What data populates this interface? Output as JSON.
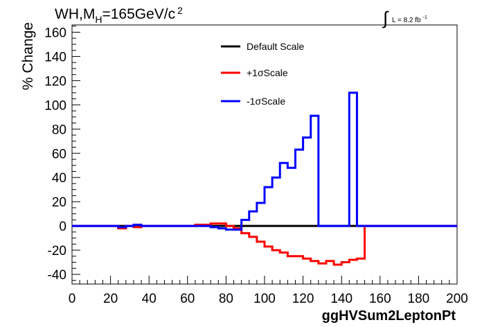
{
  "chart_data": {
    "type": "line",
    "title": "WH,M",
    "title_sub": "H",
    "title_rest": "=165GeV/c",
    "title_sup": "2",
    "lumi_label": "L = 8.2 fb",
    "lumi_sup": "-1",
    "xlabel": "ggHVSum2LeptonPt",
    "ylabel": "% Change",
    "xlim": [
      0,
      200
    ],
    "ylim": [
      -48,
      166
    ],
    "x_ticks": [
      0,
      20,
      40,
      60,
      80,
      100,
      120,
      140,
      160,
      180,
      200
    ],
    "x_tick_labels": [
      "0",
      "20",
      "40",
      "60",
      "80",
      "100",
      "120",
      "140",
      "160",
      "180",
      "200"
    ],
    "y_ticks": [
      -40,
      -20,
      0,
      20,
      40,
      60,
      80,
      100,
      120,
      140,
      160
    ],
    "y_tick_labels": [
      "-40",
      "-20",
      "0",
      "20",
      "40",
      "60",
      "80",
      "100",
      "120",
      "140",
      "160"
    ],
    "bin_edges": [
      0,
      4,
      8,
      12,
      16,
      20,
      24,
      28,
      32,
      36,
      40,
      44,
      48,
      52,
      56,
      60,
      64,
      68,
      72,
      76,
      80,
      84,
      88,
      92,
      96,
      100,
      104,
      108,
      112,
      116,
      120,
      124,
      128,
      132,
      136,
      140,
      144,
      148,
      152,
      156,
      160,
      164,
      168,
      172,
      176,
      180,
      184,
      188,
      192,
      196,
      200
    ],
    "legend_position": "top-center",
    "grid": false,
    "series": [
      {
        "name": "Default Scale",
        "color": "#000000",
        "values": [
          0,
          0,
          0,
          0,
          0,
          0,
          0,
          0,
          0,
          0,
          0,
          0,
          0,
          0,
          0,
          0,
          0,
          0,
          0,
          0,
          0,
          0,
          0,
          0,
          0,
          0,
          0,
          0,
          0,
          0,
          0,
          0,
          0,
          0,
          0,
          0,
          0,
          0,
          0,
          0,
          0,
          0,
          0,
          0,
          0,
          0,
          0,
          0,
          0,
          0
        ]
      },
      {
        "name": "+1σScale",
        "color": "#ff0000",
        "values": [
          0,
          0,
          0,
          0,
          0,
          0,
          -2,
          0,
          -1,
          0,
          0,
          0,
          0,
          0,
          0,
          0,
          1,
          1,
          2,
          2,
          0,
          -2,
          -6,
          -9,
          -13,
          -17,
          -20,
          -22,
          -25,
          -25,
          -27,
          -29,
          -31,
          -29,
          -32,
          -30,
          -28,
          -27,
          0,
          0,
          0,
          0,
          0,
          0,
          0,
          0,
          0,
          0,
          0,
          0
        ]
      },
      {
        "name": "-1σScale",
        "color": "#0000ff",
        "values": [
          0,
          0,
          0,
          0,
          0,
          0,
          -1,
          0,
          1,
          0,
          0,
          0,
          0,
          0,
          0,
          0,
          0,
          0,
          -1,
          -2,
          -3,
          -3,
          5,
          12,
          19,
          32,
          40,
          52,
          48,
          63,
          73,
          91,
          0,
          0,
          0,
          0,
          110,
          0,
          0,
          0,
          0,
          0,
          0,
          0,
          0,
          0,
          0,
          0,
          0,
          0
        ]
      }
    ]
  }
}
